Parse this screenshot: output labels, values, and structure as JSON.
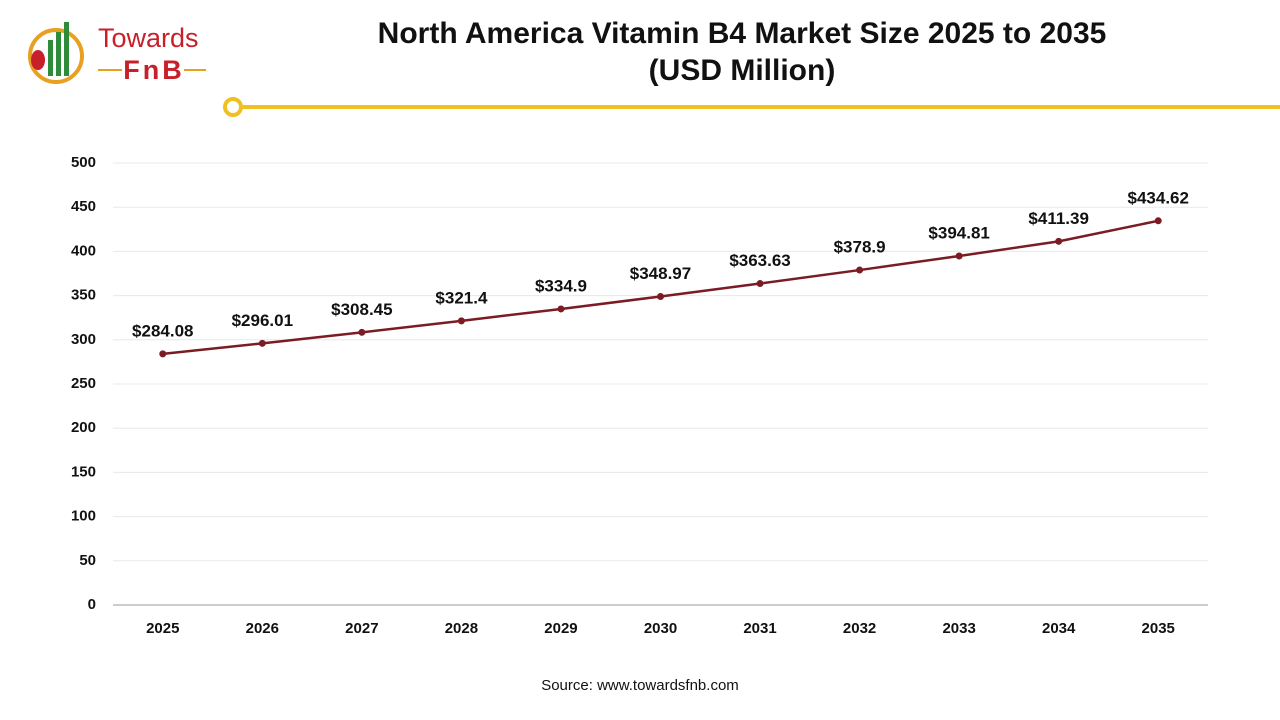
{
  "logo": {
    "line1": "Towards",
    "line2": "FnB"
  },
  "chart_data": {
    "type": "line",
    "title": "North America Vitamin B4 Market Size 2025 to 2035",
    "subtitle": "(USD Million)",
    "categories": [
      "2025",
      "2026",
      "2027",
      "2028",
      "2029",
      "2030",
      "2031",
      "2032",
      "2033",
      "2034",
      "2035"
    ],
    "values": [
      284.08,
      296.01,
      308.45,
      321.4,
      334.9,
      348.97,
      363.63,
      378.9,
      394.81,
      411.39,
      434.62
    ],
    "value_labels": [
      "$284.08",
      "$296.01",
      "$308.45",
      "$321.4",
      "$334.9",
      "$348.97",
      "$363.63",
      "$378.9",
      "$394.81",
      "$411.39",
      "$434.62"
    ],
    "color": "#7b1c24",
    "ylim": [
      0,
      500
    ],
    "yticks": [
      0,
      50,
      100,
      150,
      200,
      250,
      300,
      350,
      400,
      450,
      500
    ],
    "grid": true,
    "source": "Source: www.towardsfnb.com"
  }
}
